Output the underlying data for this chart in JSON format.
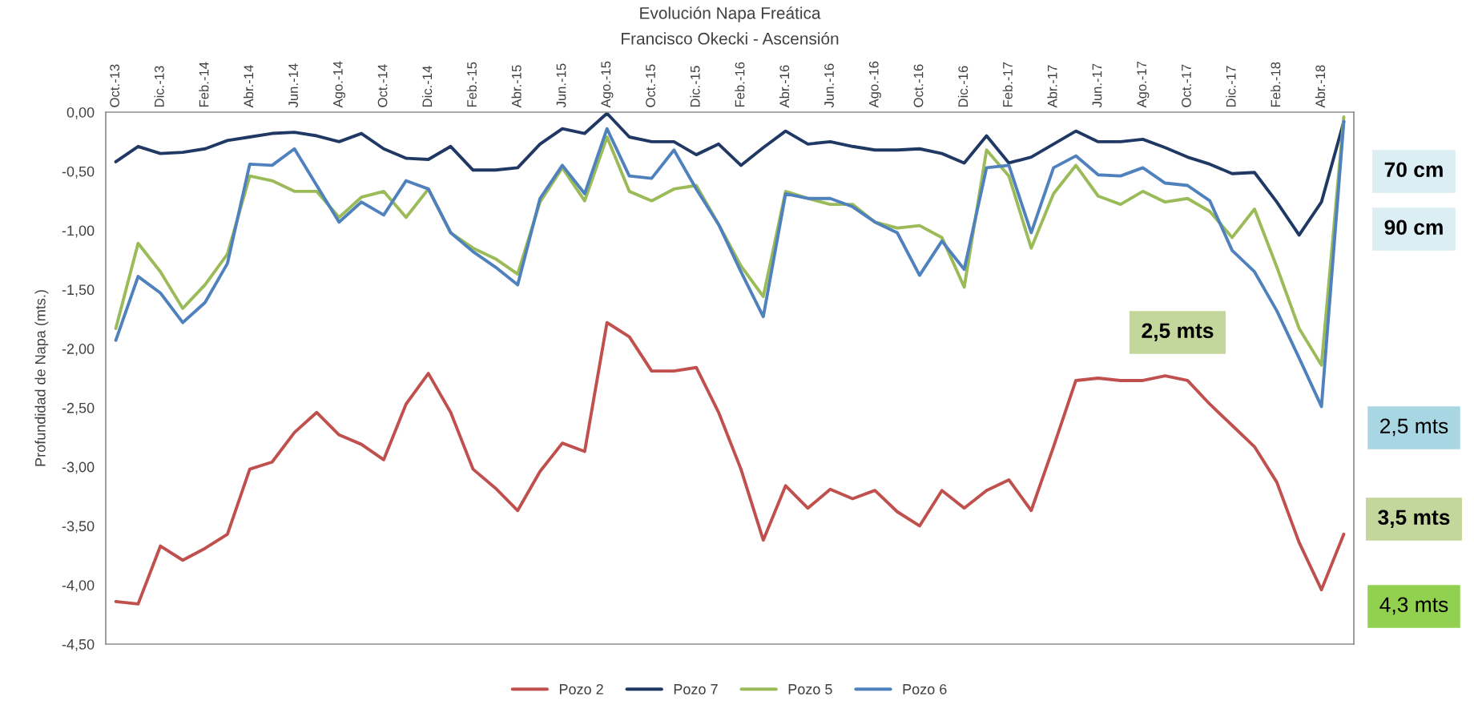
{
  "chart_data": {
    "type": "line",
    "title": "Evolución Napa Freática",
    "subtitle": "Francisco Okecki - Ascensión",
    "ylabel": "Profundidad de Napa (mts.)",
    "categories": [
      "Oct.-13",
      null,
      "Dic.-13",
      null,
      "Feb.-14",
      null,
      "Abr.-14",
      null,
      "Jun.-14",
      null,
      "Ago.-14",
      null,
      "Oct.-14",
      null,
      "Dic.-14",
      null,
      "Feb.-15",
      null,
      "Abr.-15",
      null,
      "Jun.-15",
      null,
      "Ago.-15",
      null,
      "Oct.-15",
      null,
      "Dic.-15",
      null,
      "Feb.-16",
      null,
      "Abr.-16",
      null,
      "Jun.-16",
      null,
      "Ago.-16",
      null,
      "Oct.-16",
      null,
      "Dic.-16",
      null,
      "Feb.-17",
      null,
      "Abr.-17",
      null,
      "Jun.-17",
      null,
      "Ago.-17",
      null,
      "Oct.-17",
      null,
      "Dic.-17",
      null,
      "Feb.-18",
      null,
      "Abr.-18",
      null
    ],
    "ylim": [
      -4.5,
      0
    ],
    "yticks": [
      {
        "value": 0,
        "label": "0,00"
      },
      {
        "value": -0.5,
        "label": "-0,50"
      },
      {
        "value": -1,
        "label": "-1,00"
      },
      {
        "value": -1.5,
        "label": "-1,50"
      },
      {
        "value": -2,
        "label": "-2,00"
      },
      {
        "value": -2.5,
        "label": "-2,50"
      },
      {
        "value": -3,
        "label": "-3,00"
      },
      {
        "value": -3.5,
        "label": "-3,50"
      },
      {
        "value": -4,
        "label": "-4,00"
      },
      {
        "value": -4.5,
        "label": "-4,50"
      }
    ],
    "legend": "bottom",
    "line_style": "solid",
    "series": [
      {
        "name": "Pozo 2",
        "color": "#c0504d",
        "values": [
          -4.14,
          -4.16,
          -3.67,
          -3.79,
          -3.69,
          -3.57,
          -3.02,
          -2.96,
          -2.71,
          -2.54,
          -2.73,
          -2.81,
          -2.94,
          -2.47,
          -2.21,
          -2.54,
          -3.02,
          -3.18,
          -3.37,
          -3.04,
          -2.8,
          -2.87,
          -1.78,
          -1.9,
          -2.19,
          -2.19,
          -2.16,
          -2.54,
          -3.02,
          -3.62,
          -3.16,
          -3.35,
          -3.19,
          -3.27,
          -3.2,
          -3.38,
          -3.5,
          -3.2,
          -3.35,
          -3.2,
          -3.11,
          -3.37,
          -2.83,
          -2.27,
          -2.25,
          -2.27,
          -2.27,
          -2.23,
          -2.27,
          -2.47,
          -2.65,
          -2.83,
          -3.13,
          -3.64,
          -4.04,
          -3.57
        ]
      },
      {
        "name": "Pozo 7",
        "color": "#1f3864",
        "values": [
          -0.42,
          -0.29,
          -0.35,
          -0.34,
          -0.31,
          -0.24,
          -0.21,
          -0.18,
          -0.17,
          -0.2,
          -0.25,
          -0.18,
          -0.31,
          -0.39,
          -0.4,
          -0.29,
          -0.49,
          -0.49,
          -0.47,
          -0.27,
          -0.14,
          -0.18,
          -0.01,
          -0.21,
          -0.25,
          -0.25,
          -0.36,
          -0.27,
          -0.45,
          -0.3,
          -0.16,
          -0.27,
          -0.25,
          -0.29,
          -0.32,
          -0.32,
          -0.31,
          -0.35,
          -0.43,
          -0.2,
          -0.43,
          -0.38,
          -0.27,
          -0.16,
          -0.25,
          -0.25,
          -0.23,
          -0.3,
          -0.38,
          -0.44,
          -0.52,
          -0.51,
          -0.76,
          -1.04,
          -0.76,
          -0.08
        ]
      },
      {
        "name": "Pozo 5",
        "color": "#9bbb59",
        "values": [
          -1.83,
          -1.11,
          -1.35,
          -1.66,
          -1.46,
          -1.2,
          -0.54,
          -0.58,
          -0.67,
          -0.67,
          -0.89,
          -0.72,
          -0.67,
          -0.89,
          -0.65,
          -1.02,
          -1.15,
          -1.24,
          -1.37,
          -0.76,
          -0.47,
          -0.75,
          -0.21,
          -0.67,
          -0.75,
          -0.65,
          -0.62,
          -0.95,
          -1.3,
          -1.56,
          -0.67,
          -0.73,
          -0.78,
          -0.78,
          -0.93,
          -0.98,
          -0.96,
          -1.06,
          -1.48,
          -0.32,
          -0.54,
          -1.15,
          -0.69,
          -0.45,
          -0.71,
          -0.78,
          -0.67,
          -0.76,
          -0.73,
          -0.84,
          -1.06,
          -0.82,
          -1.31,
          -1.83,
          -2.14,
          -0.04
        ]
      },
      {
        "name": "Pozo 6",
        "color": "#4f81bd",
        "values": [
          -1.93,
          -1.39,
          -1.53,
          -1.78,
          -1.61,
          -1.28,
          -0.44,
          -0.45,
          -0.31,
          -0.62,
          -0.93,
          -0.76,
          -0.87,
          -0.58,
          -0.65,
          -1.02,
          -1.18,
          -1.31,
          -1.46,
          -0.73,
          -0.45,
          -0.69,
          -0.14,
          -0.54,
          -0.56,
          -0.32,
          -0.65,
          -0.95,
          -1.35,
          -1.73,
          -0.69,
          -0.73,
          -0.73,
          -0.8,
          -0.93,
          -1.02,
          -1.38,
          -1.09,
          -1.33,
          -0.47,
          -0.45,
          -1.02,
          -0.47,
          -0.37,
          -0.53,
          -0.54,
          -0.47,
          -0.6,
          -0.62,
          -0.75,
          -1.17,
          -1.35,
          -1.68,
          -2.08,
          -2.49,
          -0.08
        ]
      }
    ],
    "annotations": [
      "70 cm",
      "90 cm",
      "2,5 mts",
      "2,5 mts",
      "3,5 mts",
      "4,3 mts"
    ]
  }
}
